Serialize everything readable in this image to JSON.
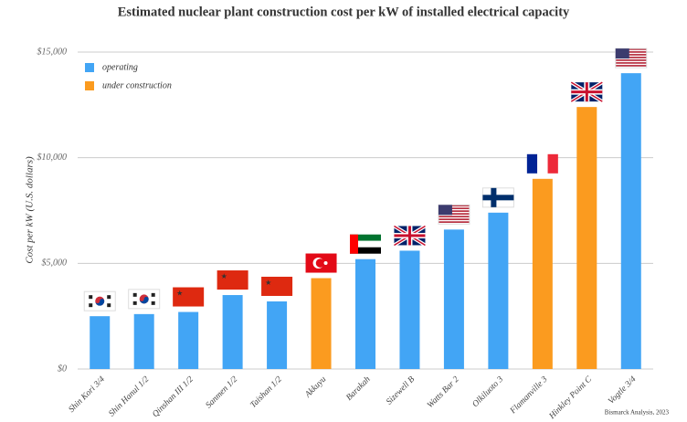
{
  "chart_data": {
    "type": "bar",
    "title": "Estimated nuclear plant construction cost per kW of installed electrical capacity",
    "y_label": "Cost per kW (U.S. dollars)",
    "source": "Bismarck Analysis, 2023",
    "categories": [
      "Shin Kori 3/4",
      "Shin Hanul 1/2",
      "Qinshan III 1/2",
      "Sanmen 1/2",
      "Taishan 1/2",
      "Akkuyu",
      "Barakah",
      "Sizewell B",
      "Watts Bar 2",
      "Olkiluoto 3",
      "Flamanville 3",
      "Hinkley Point C",
      "Vogtle 3/4"
    ],
    "series": [
      {
        "name": "operating",
        "color": "#42a5f5",
        "values": [
          2500,
          2600,
          2700,
          3500,
          3200,
          null,
          5200,
          5600,
          6600,
          7400,
          null,
          null,
          14000
        ]
      },
      {
        "name": "under construction",
        "color": "#fb9b1f",
        "values": [
          null,
          null,
          null,
          null,
          null,
          4300,
          null,
          null,
          null,
          null,
          9000,
          12400,
          null
        ]
      }
    ],
    "ylim": [
      0,
      15000
    ],
    "yticks": [
      {
        "value": 0,
        "label": "$0"
      },
      {
        "value": 5000,
        "label": "$5,000"
      },
      {
        "value": 10000,
        "label": "$10,000"
      },
      {
        "value": 15000,
        "label": "$15,000"
      }
    ],
    "grid": true,
    "legend": "upper left"
  }
}
